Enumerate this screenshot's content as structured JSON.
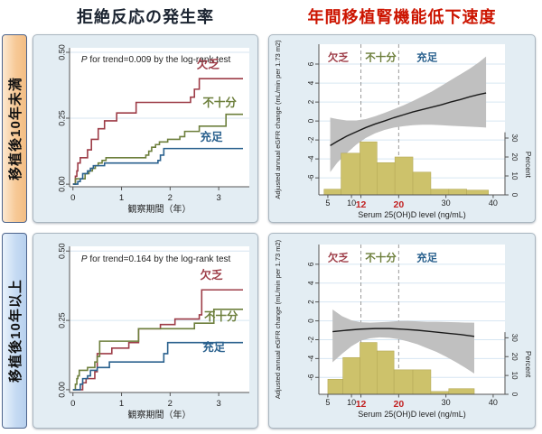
{
  "titles": {
    "left": "拒絶反応の発生率",
    "right": "年間移植腎機能低下速度"
  },
  "row_labels": [
    {
      "text": "移植後10年未満"
    },
    {
      "text": "移植後10年以上"
    }
  ],
  "legend": {
    "deficient": "欠乏",
    "insufficient": "不十分",
    "sufficient": "充足"
  },
  "colors": {
    "deficient": "#9d3c47",
    "insufficient": "#6d7f3c",
    "sufficient": "#2a618e",
    "band": "#c0c0c0",
    "hist": "#cdc26b",
    "hist_edge": "#b5aa58",
    "panel_bg": "#e3edf3",
    "grid": "#d7e6f2",
    "axis": "#555555",
    "dash": "#9a9a9a",
    "red_accent": "#c22222",
    "line_black": "#1a1a1a",
    "title_right_red": "#cc1400"
  },
  "chart_data": [
    {
      "id": "km1",
      "type": "line",
      "subtype": "kaplan-meier-step",
      "title": "拒絶反応の発生率（移植後10年未満）",
      "xlabel": "観察期間（年）",
      "p_text": {
        "italic": "P",
        "rest": " for trend=0.009  by the log-rank  test"
      },
      "xlim": [
        -0.07,
        3.63
      ],
      "ylim": [
        -0.01,
        0.517
      ],
      "x_ticks": [
        0,
        1,
        2,
        3
      ],
      "y_ticks": [
        0,
        0.25,
        0.5
      ],
      "y_tick_labels": [
        "0.00",
        "0.25",
        "0.50"
      ],
      "grid": true,
      "series": [
        {
          "name": "欠乏",
          "color_key": "deficient",
          "label_at": [
            2.78,
            0.44
          ],
          "steps": [
            [
              0,
              0
            ],
            [
              0.05,
              0.03
            ],
            [
              0.08,
              0.05
            ],
            [
              0.1,
              0.08
            ],
            [
              0.15,
              0.1
            ],
            [
              0.3,
              0.13
            ],
            [
              0.38,
              0.17
            ],
            [
              0.52,
              0.21
            ],
            [
              0.65,
              0.24
            ],
            [
              0.9,
              0.27
            ],
            [
              1.3,
              0.31
            ],
            [
              2.42,
              0.33
            ],
            [
              2.5,
              0.36
            ],
            [
              2.6,
              0.4
            ],
            [
              3.5,
              0.4
            ]
          ]
        },
        {
          "name": "不十分",
          "color_key": "insufficient",
          "label_at": [
            3.02,
            0.295
          ],
          "steps": [
            [
              0,
              0
            ],
            [
              0.05,
              0.02
            ],
            [
              0.25,
              0.04
            ],
            [
              0.33,
              0.05
            ],
            [
              0.4,
              0.06
            ],
            [
              0.46,
              0.07
            ],
            [
              0.52,
              0.08
            ],
            [
              0.6,
              0.09
            ],
            [
              0.68,
              0.1
            ],
            [
              1.5,
              0.11
            ],
            [
              1.56,
              0.125
            ],
            [
              1.62,
              0.14
            ],
            [
              1.7,
              0.15
            ],
            [
              1.78,
              0.16
            ],
            [
              1.95,
              0.17
            ],
            [
              2.2,
              0.18
            ],
            [
              2.3,
              0.2
            ],
            [
              2.6,
              0.22
            ],
            [
              3.15,
              0.265
            ],
            [
              3.5,
              0.265
            ]
          ]
        },
        {
          "name": "充足",
          "color_key": "sufficient",
          "label_at": [
            2.85,
            0.165
          ],
          "steps": [
            [
              0,
              0
            ],
            [
              0.1,
              0.01
            ],
            [
              0.15,
              0.02
            ],
            [
              0.2,
              0.04
            ],
            [
              0.3,
              0.05
            ],
            [
              0.36,
              0.06
            ],
            [
              0.42,
              0.07
            ],
            [
              0.65,
              0.08
            ],
            [
              1.75,
              0.09
            ],
            [
              1.8,
              0.11
            ],
            [
              1.87,
              0.135
            ],
            [
              3.5,
              0.135
            ]
          ]
        }
      ]
    },
    {
      "id": "km2",
      "type": "line",
      "subtype": "kaplan-meier-step",
      "title": "拒絶反応の発生率（移植後10年以上）",
      "xlabel": "観察期間（年）",
      "p_text": {
        "italic": "P",
        "rest": " for trend=0.164  by the log-rank  test"
      },
      "xlim": [
        -0.07,
        3.63
      ],
      "ylim": [
        -0.01,
        0.517
      ],
      "x_ticks": [
        0,
        1,
        2,
        3
      ],
      "y_ticks": [
        0,
        0.25,
        0.5
      ],
      "y_tick_labels": [
        "0.00",
        "0.25",
        "0.50"
      ],
      "grid": true,
      "series": [
        {
          "name": "欠乏",
          "color_key": "deficient",
          "label_at": [
            2.85,
            0.4
          ],
          "steps": [
            [
              0,
              0
            ],
            [
              0.2,
              0.025
            ],
            [
              0.27,
              0.04
            ],
            [
              0.45,
              0.065
            ],
            [
              0.5,
              0.13
            ],
            [
              0.8,
              0.15
            ],
            [
              1.15,
              0.17
            ],
            [
              1.35,
              0.22
            ],
            [
              1.8,
              0.235
            ],
            [
              2.1,
              0.255
            ],
            [
              2.6,
              0.27
            ],
            [
              2.65,
              0.36
            ],
            [
              3.5,
              0.36
            ]
          ]
        },
        {
          "name": "不十分",
          "color_key": "insufficient",
          "label_at": [
            3.05,
            0.25
          ],
          "steps": [
            [
              0,
              0
            ],
            [
              0.05,
              0.02
            ],
            [
              0.08,
              0.04
            ],
            [
              0.1,
              0.05
            ],
            [
              0.13,
              0.07
            ],
            [
              0.3,
              0.08
            ],
            [
              0.45,
              0.1
            ],
            [
              0.5,
              0.12
            ],
            [
              0.55,
              0.175
            ],
            [
              1.35,
              0.22
            ],
            [
              2.5,
              0.24
            ],
            [
              2.9,
              0.29
            ],
            [
              3.5,
              0.29
            ]
          ]
        },
        {
          "name": "充足",
          "color_key": "sufficient",
          "label_at": [
            2.9,
            0.14
          ],
          "steps": [
            [
              0,
              0
            ],
            [
              0.15,
              0.02
            ],
            [
              0.2,
              0.04
            ],
            [
              0.3,
              0.05
            ],
            [
              0.36,
              0.07
            ],
            [
              0.5,
              0.08
            ],
            [
              0.75,
              0.1
            ],
            [
              1.87,
              0.13
            ],
            [
              1.95,
              0.17
            ],
            [
              3.5,
              0.17
            ]
          ]
        }
      ]
    },
    {
      "id": "gfr1",
      "type": "area",
      "subtype": "regression-with-ci-and-histogram",
      "title": "年間移植腎機能低下速度（移植後10年未満）",
      "xlabel": "Serum 25(OH)D level (ng/mL)",
      "ylabel": "Adjusted annual eGFR change (mL/min per 1.73 m2)",
      "y2label": "Percent",
      "xlim": [
        3.1,
        42.5
      ],
      "ylim": [
        -7.8,
        8.1
      ],
      "x_ticks": [
        5,
        10,
        30,
        40
      ],
      "x_red_ticks": [
        12,
        20
      ],
      "y_ticks": [
        6,
        4,
        2,
        0,
        -2,
        -4,
        -6
      ],
      "y_tick_labels": [
        "6",
        "4",
        "2",
        "0",
        "-2",
        "-4",
        "-6"
      ],
      "y2_ticks": [
        0,
        10,
        20,
        30
      ],
      "pct_to_y": {
        "zero": -7.8,
        "per_unit": 0.2
      },
      "vlines": [
        12,
        20
      ],
      "cat_label_y": 6.35,
      "cat_labels": [
        {
          "text": "欠乏",
          "x": 7.2,
          "color_key": "deficient"
        },
        {
          "text": "不十分",
          "x": 16.2,
          "color_key": "insufficient"
        },
        {
          "text": "充足",
          "x": 26,
          "color_key": "sufficient"
        }
      ],
      "line": [
        [
          5.5,
          -2.6
        ],
        [
          7,
          -2.15
        ],
        [
          9,
          -1.6
        ],
        [
          11,
          -1.15
        ],
        [
          13,
          -0.7
        ],
        [
          15,
          -0.32
        ],
        [
          17,
          0.0
        ],
        [
          19,
          0.35
        ],
        [
          21,
          0.65
        ],
        [
          23,
          0.95
        ],
        [
          25,
          1.2
        ],
        [
          27,
          1.45
        ],
        [
          29,
          1.7
        ],
        [
          31,
          2.0
        ],
        [
          33,
          2.25
        ],
        [
          35,
          2.55
        ],
        [
          37,
          2.8
        ],
        [
          38.5,
          2.95
        ]
      ],
      "band_upper": [
        [
          5.5,
          0.35
        ],
        [
          7,
          0.2
        ],
        [
          9,
          0.05
        ],
        [
          11,
          0.05
        ],
        [
          13,
          0.2
        ],
        [
          15,
          0.5
        ],
        [
          17,
          0.85
        ],
        [
          19,
          1.25
        ],
        [
          21,
          1.65
        ],
        [
          23,
          2.1
        ],
        [
          25,
          2.6
        ],
        [
          27,
          3.1
        ],
        [
          29,
          3.7
        ],
        [
          31,
          4.3
        ],
        [
          33,
          4.9
        ],
        [
          35,
          5.5
        ],
        [
          37,
          6.2
        ],
        [
          38.5,
          6.8
        ]
      ],
      "band_lower": [
        [
          5.5,
          -5.4
        ],
        [
          7,
          -4.4
        ],
        [
          9,
          -3.4
        ],
        [
          11,
          -2.5
        ],
        [
          13,
          -1.8
        ],
        [
          15,
          -1.3
        ],
        [
          17,
          -0.95
        ],
        [
          19,
          -0.7
        ],
        [
          21,
          -0.55
        ],
        [
          23,
          -0.45
        ],
        [
          25,
          -0.4
        ],
        [
          27,
          -0.4
        ],
        [
          29,
          -0.45
        ],
        [
          31,
          -0.5
        ],
        [
          33,
          -0.55
        ],
        [
          35,
          -0.6
        ],
        [
          37,
          -0.65
        ],
        [
          38.5,
          -0.7
        ]
      ],
      "bars": [
        [
          4.2,
          7.8,
          3
        ],
        [
          7.8,
          11.8,
          22
        ],
        [
          11.8,
          15.4,
          28
        ],
        [
          15.4,
          19.2,
          17
        ],
        [
          19.2,
          23,
          20
        ],
        [
          23,
          26.8,
          12
        ],
        [
          26.8,
          30.6,
          3
        ],
        [
          30.6,
          34.4,
          3
        ],
        [
          34.4,
          39,
          2.5
        ]
      ]
    },
    {
      "id": "gfr2",
      "type": "area",
      "subtype": "regression-with-ci-and-histogram",
      "title": "年間移植腎機能低下速度（移植後10年以上）",
      "xlabel": "Serum 25(OH)D level (ng/mL)",
      "ylabel": "Adjusted annual eGFR change (mL/min per 1.73 m2)",
      "y2label": "Percent",
      "xlim": [
        3.1,
        42.5
      ],
      "ylim": [
        -7.8,
        8.1
      ],
      "x_ticks": [
        5,
        10,
        30,
        40
      ],
      "x_red_ticks": [
        12,
        20
      ],
      "y_ticks": [
        6,
        4,
        2,
        0,
        -2,
        -4,
        -6
      ],
      "y_tick_labels": [
        "6",
        "4",
        "2",
        "0",
        "-2",
        "-4",
        "-6"
      ],
      "y2_ticks": [
        0,
        10,
        20,
        30
      ],
      "pct_to_y": {
        "zero": -7.8,
        "per_unit": 0.2
      },
      "vlines": [
        12,
        20
      ],
      "cat_label_y": 6.35,
      "cat_labels": [
        {
          "text": "欠乏",
          "x": 7.2,
          "color_key": "deficient"
        },
        {
          "text": "不十分",
          "x": 16.2,
          "color_key": "insufficient"
        },
        {
          "text": "充足",
          "x": 26,
          "color_key": "sufficient"
        }
      ],
      "line": [
        [
          6,
          -1.15
        ],
        [
          9,
          -1.0
        ],
        [
          12,
          -0.88
        ],
        [
          15,
          -0.82
        ],
        [
          18,
          -0.82
        ],
        [
          21,
          -0.9
        ],
        [
          24,
          -1.0
        ],
        [
          27,
          -1.15
        ],
        [
          30,
          -1.3
        ],
        [
          33,
          -1.45
        ],
        [
          36,
          -1.65
        ]
      ],
      "band_upper": [
        [
          6,
          1.2
        ],
        [
          8,
          0.5
        ],
        [
          10,
          0.05
        ],
        [
          12,
          -0.15
        ],
        [
          14,
          -0.2
        ],
        [
          16,
          -0.15
        ],
        [
          18,
          -0.1
        ],
        [
          20,
          -0.02
        ],
        [
          22,
          0.0
        ],
        [
          24,
          -0.05
        ],
        [
          26,
          -0.1
        ],
        [
          28,
          -0.1
        ],
        [
          30,
          -0.12
        ],
        [
          32,
          -0.15
        ],
        [
          34,
          -0.18
        ],
        [
          36,
          -0.2
        ]
      ],
      "band_lower": [
        [
          6,
          -4.4
        ],
        [
          8,
          -3.5
        ],
        [
          10,
          -2.7
        ],
        [
          12,
          -2.1
        ],
        [
          14,
          -1.85
        ],
        [
          16,
          -1.75
        ],
        [
          18,
          -1.8
        ],
        [
          20,
          -1.95
        ],
        [
          22,
          -2.2
        ],
        [
          24,
          -2.5
        ],
        [
          26,
          -2.9
        ],
        [
          28,
          -3.3
        ],
        [
          30,
          -3.8
        ],
        [
          32,
          -4.35
        ],
        [
          34,
          -4.95
        ],
        [
          36,
          -5.6
        ]
      ],
      "bars": [
        [
          5,
          8.2,
          8
        ],
        [
          8.2,
          11.8,
          19.5
        ],
        [
          11.8,
          15.4,
          27.5
        ],
        [
          15.4,
          19,
          23
        ],
        [
          19,
          23,
          13
        ],
        [
          23,
          26.8,
          13
        ],
        [
          26.8,
          30.6,
          1.5
        ],
        [
          30.6,
          36,
          3
        ]
      ]
    }
  ]
}
